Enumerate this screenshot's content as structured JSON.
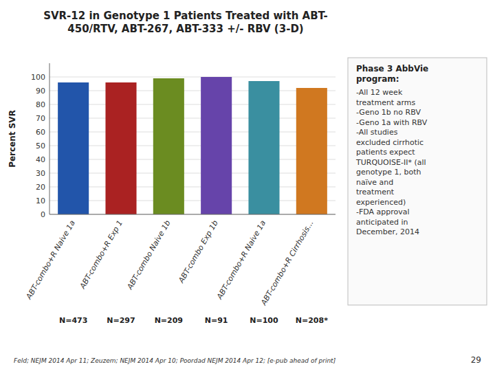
{
  "chart_data": {
    "type": "bar",
    "title": "SVR-12 in Genotype 1 Patients Treated with ABT-\n450/RTV, ABT-267, ABT-333 +/- RBV (3-D)",
    "ylabel": "Percent SVR",
    "categories": [
      "ABT-combo+R Naive 1a",
      "ABT-combo+R Exp 1",
      "ABT-combo Naive 1b",
      "ABT-combo Exp 1b",
      "ABT-combo+R Naive 1a",
      "ABT-combo+R Cirrhosis..."
    ],
    "values": [
      96,
      96,
      99,
      100,
      97,
      92
    ],
    "colors": [
      "#2255aa",
      "#aa2222",
      "#6b8c21",
      "#6644aa",
      "#3a8fa0",
      "#d07820"
    ],
    "n_labels": [
      "N=473",
      "N=297",
      "N=209",
      "N=91",
      "N=100",
      "N=208*"
    ],
    "ylim": [
      0,
      110
    ],
    "yticks": [
      0,
      10,
      20,
      30,
      40,
      50,
      60,
      70,
      80,
      90,
      100
    ],
    "grid": true,
    "footnote": "Feld; NEJM 2014 Apr 11; Zeuzem; NEJM 2014 Apr 10; Poordad NEJM 2014 Apr 12; [e-pub ahead of print]",
    "page_number": "29",
    "annotation_title": "Phase 3 AbbVie\nprogram:",
    "annotation_body": "-All 12 week\ntreatment arms\n-Geno 1b no RBV\n-Geno 1a with RBV\n-All studies\nexcluded cirrhotic\npatients expect\nTURQUOISE-II* (all\ngenotype 1, both\nnaïve and\ntreatment\nexperienced)\n-FDA approval\nanticipated in\nDecember, 2014"
  }
}
